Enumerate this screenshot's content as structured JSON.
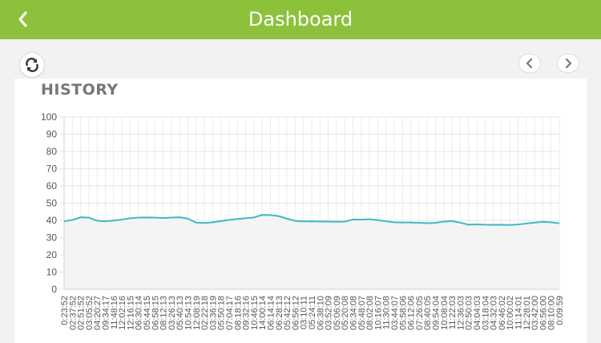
{
  "header": {
    "title": "Dashboard",
    "back_icon": "chevron-left-icon",
    "bg_color": "#8dc13c"
  },
  "toolbar": {
    "refresh_icon": "refresh-icon",
    "prev_icon": "chevron-left-icon",
    "next_icon": "chevron-right-icon"
  },
  "card": {
    "title": "HISTORY"
  },
  "chart_data": {
    "type": "area",
    "title": "",
    "xlabel": "",
    "ylabel": "",
    "ylim": [
      0,
      100
    ],
    "y_ticks": [
      0,
      10,
      20,
      30,
      40,
      50,
      60,
      70,
      80,
      90,
      100
    ],
    "grid": true,
    "line_color": "#3fb8c6",
    "fill_color": "#f4f4f4",
    "x": [
      "0:23:52",
      "02:37:52",
      "02:51:52",
      "03:05:52",
      "04:20:27",
      "09:34:17",
      "11:48:16",
      "12:02:16",
      "12:16:15",
      "06:30:14",
      "05:44:15",
      "06:58:15",
      "08:12:13",
      "03:26:13",
      "05:40:13",
      "10:54:13",
      "12:08:19",
      "02:22:18",
      "03:36:19",
      "05:50:18",
      "07:04:17",
      "08:18:16",
      "09:32:16",
      "10:46:15",
      "14:00:14",
      "06:14:14",
      "06:28:13",
      "05:42:12",
      "06:56:12",
      "03:10:11",
      "05:24:11",
      "06:38:10",
      "03:52:09",
      "05:06:09",
      "05:20:08",
      "06:34:08",
      "05:48:07",
      "08:02:08",
      "10:16:07",
      "11:30:08",
      "03:44:07",
      "05:58:06",
      "06:12:06",
      "07:26:05",
      "08:40:05",
      "09:54:04",
      "10:08:04",
      "11:22:03",
      "12:36:03",
      "02:50:03",
      "04:04:03",
      "03:18:04",
      "04:32:03",
      "06:46:02",
      "10:00:02",
      "11:14:01",
      "12:28:01",
      "03:42:00",
      "06:56:00",
      "08:10:00",
      "0:09:59"
    ],
    "series": [
      {
        "values": [
          39.5,
          40.2,
          41.8,
          41.6,
          39.8,
          39.5,
          39.9,
          40.5,
          41.2,
          41.6,
          41.7,
          41.6,
          41.4,
          41.6,
          41.8,
          41.0,
          38.7,
          38.5,
          38.9,
          39.6,
          40.3,
          40.8,
          41.3,
          41.7,
          43.2,
          43.1,
          42.5,
          41.0,
          39.7,
          39.4,
          39.5,
          39.3,
          39.3,
          39.2,
          39.3,
          40.5,
          40.4,
          40.7,
          40.1,
          39.5,
          38.9,
          38.8,
          38.8,
          38.6,
          38.4,
          38.6,
          39.3,
          39.6,
          38.7,
          37.5,
          37.7,
          37.5,
          37.4,
          37.5,
          37.3,
          37.6,
          38.2,
          38.7,
          39.2,
          38.9,
          38.3
        ]
      }
    ]
  }
}
